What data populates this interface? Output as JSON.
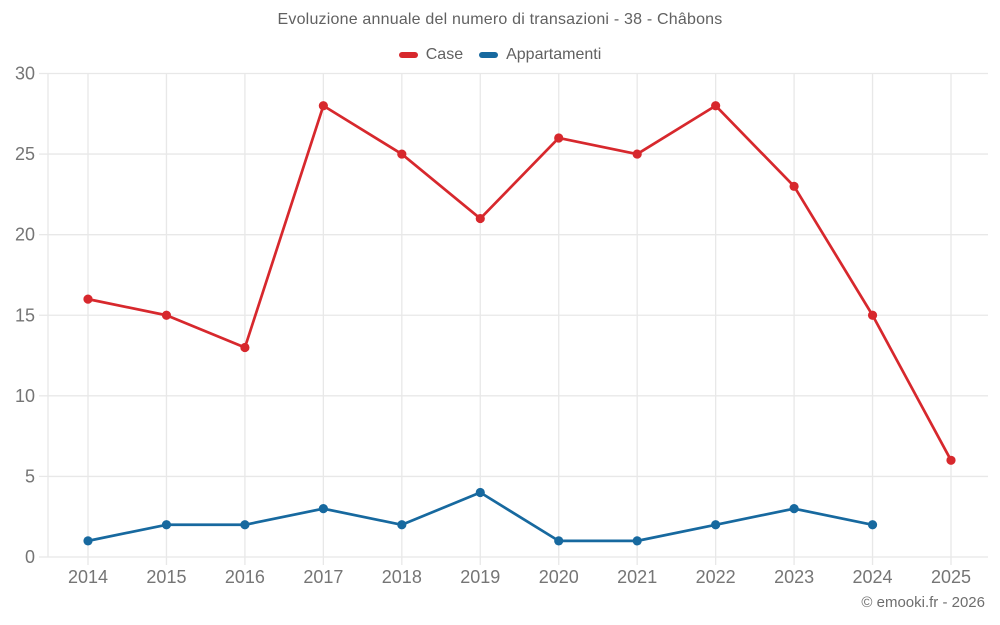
{
  "title": "Evoluzione annuale del numero di transazioni - 38 - Châbons",
  "footer": "© emooki.fr - 2026",
  "colors": {
    "grid": "#e8e8e8",
    "axis_label": "#757575",
    "title_text": "#616161"
  },
  "chart_data": {
    "type": "line",
    "title": "Evoluzione annuale del numero di transazioni - 38 - Châbons",
    "x": [
      2014,
      2015,
      2016,
      2017,
      2018,
      2019,
      2020,
      2021,
      2022,
      2023,
      2024,
      2025
    ],
    "series": [
      {
        "name": "Case",
        "color": "#d7282d",
        "values": [
          16,
          15,
          13,
          28,
          25,
          21,
          26,
          25,
          28,
          23,
          15,
          6
        ]
      },
      {
        "name": "Appartamenti",
        "color": "#17699f",
        "values": [
          1,
          2,
          2,
          3,
          2,
          4,
          1,
          1,
          2,
          3,
          2,
          null
        ]
      }
    ],
    "xlabel": "",
    "ylabel": "",
    "ylim": [
      0,
      30
    ],
    "ytick_step": 5,
    "grid": true,
    "legend_position": "top"
  }
}
